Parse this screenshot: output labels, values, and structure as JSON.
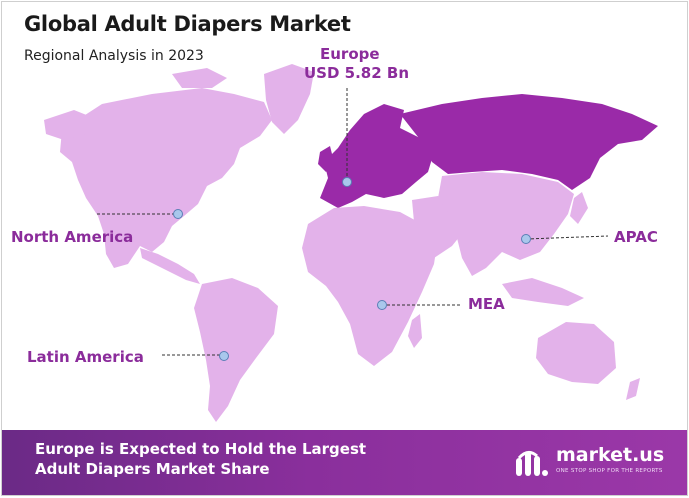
{
  "header": {
    "title": "Global Adult Diapers Market",
    "subtitle": "Regional Analysis in 2023"
  },
  "highlight": {
    "region": "Europe",
    "value": "USD 5.82 Bn"
  },
  "regions": {
    "north_america": "North America",
    "latin_america": "Latin America",
    "mea": "MEA",
    "apac": "APAC"
  },
  "footer": {
    "headline": "Europe is Expected to Hold the Largest Adult Diapers Market Share"
  },
  "brand": {
    "name": "market.us",
    "tagline": "ONE STOP SHOP FOR THE REPORTS",
    "logo_icon": "market-us-logo-icon"
  },
  "colors": {
    "land": "#e3b2ea",
    "europe": "#9a2aa8",
    "accent_text": "#8b2c9b",
    "footer_bg": "#7e2e93",
    "marker": "#a9c7ec"
  }
}
